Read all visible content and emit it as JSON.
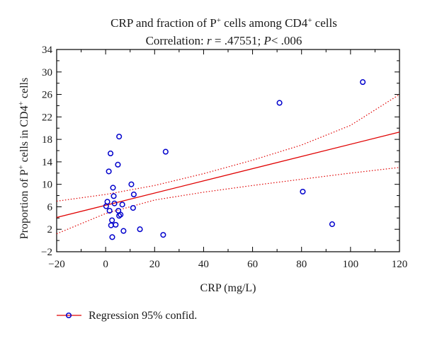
{
  "chart_data": {
    "type": "scatter",
    "title_main": "CRP and fraction of P",
    "title_sup": "+",
    "title_mid": " cells among CD4",
    "title_sup2": "+",
    "title_end": " cells",
    "subtitle_prefix": "Correlation: ",
    "subtitle_r": "r",
    "subtitle_mid": " = .47551; ",
    "subtitle_p": "P",
    "subtitle_end": "< .006",
    "xlabel": "CRP (mg/L)",
    "ylabel_a": "Proportion of P",
    "ylabel_sup": "+",
    "ylabel_b": " cells in CD4",
    "ylabel_sup2": "+",
    "ylabel_c": " cells",
    "xlim": [
      -20,
      120
    ],
    "ylim": [
      -2,
      34
    ],
    "xticks": [
      -20,
      0,
      20,
      40,
      60,
      80,
      100,
      120
    ],
    "yticks": [
      -2,
      2,
      6,
      10,
      14,
      18,
      22,
      26,
      30,
      34
    ],
    "minor_xticks": [
      -10,
      10,
      30,
      50,
      70,
      90,
      110
    ],
    "minor_yticks": [
      0,
      4,
      8,
      12,
      16,
      20,
      24,
      28,
      32
    ],
    "points": [
      {
        "x": 0.2,
        "y": 6.1
      },
      {
        "x": 0.7,
        "y": 6.9
      },
      {
        "x": 1.3,
        "y": 12.3
      },
      {
        "x": 1.6,
        "y": 5.3
      },
      {
        "x": 2.0,
        "y": 15.5
      },
      {
        "x": 2.2,
        "y": 2.7
      },
      {
        "x": 2.6,
        "y": 3.6
      },
      {
        "x": 2.7,
        "y": 0.6
      },
      {
        "x": 3.0,
        "y": 9.4
      },
      {
        "x": 3.3,
        "y": 7.9
      },
      {
        "x": 3.6,
        "y": 6.6
      },
      {
        "x": 4.1,
        "y": 2.8
      },
      {
        "x": 5.0,
        "y": 13.5
      },
      {
        "x": 5.2,
        "y": 5.3
      },
      {
        "x": 5.5,
        "y": 18.5
      },
      {
        "x": 5.5,
        "y": 4.4
      },
      {
        "x": 6.1,
        "y": 4.6
      },
      {
        "x": 6.8,
        "y": 6.4
      },
      {
        "x": 7.3,
        "y": 1.7
      },
      {
        "x": 10.5,
        "y": 10.0
      },
      {
        "x": 11.5,
        "y": 8.2
      },
      {
        "x": 11.2,
        "y": 5.8
      },
      {
        "x": 14.0,
        "y": 2.0
      },
      {
        "x": 23.5,
        "y": 1.0
      },
      {
        "x": 24.5,
        "y": 15.8
      },
      {
        "x": 71.0,
        "y": 24.5
      },
      {
        "x": 80.5,
        "y": 8.7
      },
      {
        "x": 92.5,
        "y": 2.9
      },
      {
        "x": 105.0,
        "y": 28.2
      }
    ],
    "regression": {
      "x0": -20,
      "y0": 4.1,
      "x1": 120,
      "y1": 19.3
    },
    "ci_upper": [
      [
        -20,
        7.0
      ],
      [
        0,
        8.2
      ],
      [
        20,
        9.8
      ],
      [
        40,
        11.9
      ],
      [
        60,
        14.3
      ],
      [
        80,
        17.0
      ],
      [
        100,
        20.5
      ],
      [
        120,
        26.0
      ]
    ],
    "ci_lower": [
      [
        -20,
        1.2
      ],
      [
        0,
        4.8
      ],
      [
        20,
        7.2
      ],
      [
        40,
        8.6
      ],
      [
        60,
        9.8
      ],
      [
        80,
        10.9
      ],
      [
        100,
        12.0
      ],
      [
        120,
        13.0
      ]
    ],
    "legend": {
      "label": "Regression 95% confid.",
      "placement": "bottom-left"
    },
    "colors": {
      "points": "#0000cc",
      "regression": "#e00000",
      "axes": "#000000"
    },
    "grid": false
  }
}
